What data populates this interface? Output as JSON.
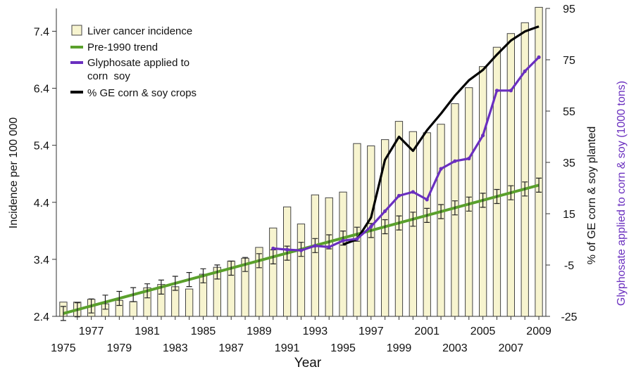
{
  "colors": {
    "bar_fill": "#f7f4cf",
    "bar_stroke": "#444444",
    "trend": "#5aa02c",
    "glyphosate": "#6a2fbf",
    "ge_crops": "#000000",
    "right_title_2": "#6a2fbf"
  },
  "chart_data": {
    "type": "bar",
    "xlabel": "Year",
    "ylabel": "Incidence per 100 000",
    "y2label_line1": "% of GE corn & soy planted",
    "y2label_line2": "Glyphosate applied to corn & soy (1000 tons)",
    "xlim": [
      1975,
      2009
    ],
    "ylim": [
      2.4,
      7.8
    ],
    "y2lim": [
      -25,
      95
    ],
    "x_ticks_top_row": [
      "1977",
      "1981",
      "1985",
      "1989",
      "1993",
      "1997",
      "2001",
      "2005",
      "2009"
    ],
    "x_ticks_bottom_row": [
      "1975",
      "1979",
      "1983",
      "1987",
      "1991",
      "1995",
      "1999",
      "2003",
      "2007"
    ],
    "y_ticks": [
      "2.4",
      "3.4",
      "4.4",
      "5.4",
      "6.4",
      "7.4"
    ],
    "y2_ticks": [
      "-25",
      "-5",
      "15",
      "35",
      "55",
      "75",
      "95"
    ],
    "grid": false,
    "legend_position": "top-left",
    "legend": [
      {
        "label": "Liver cancer incidence",
        "kind": "bar"
      },
      {
        "label": "Pre-1990 trend",
        "kind": "line",
        "color": "#5aa02c"
      },
      {
        "label_line1": "Glyphosate applied to",
        "label_line2": "corn  soy",
        "kind": "line",
        "color": "#6a2fbf"
      },
      {
        "label": "% GE corn & soy crops",
        "kind": "line",
        "color": "#000000"
      }
    ],
    "bars": {
      "name": "Liver cancer incidence",
      "x": [
        1975,
        1976,
        1977,
        1978,
        1979,
        1980,
        1981,
        1982,
        1983,
        1984,
        1985,
        1986,
        1987,
        1988,
        1989,
        1990,
        1991,
        1992,
        1993,
        1994,
        1995,
        1996,
        1997,
        1998,
        1999,
        2000,
        2001,
        2002,
        2003,
        2004,
        2005,
        2006,
        2007,
        2008,
        2009
      ],
      "values": [
        2.65,
        2.65,
        2.7,
        2.62,
        2.68,
        2.66,
        2.9,
        2.96,
        2.92,
        2.88,
        3.14,
        3.26,
        3.37,
        3.42,
        3.61,
        3.95,
        4.32,
        4.02,
        4.53,
        4.48,
        4.58,
        5.43,
        5.39,
        5.5,
        5.82,
        5.64,
        5.62,
        5.77,
        6.13,
        6.41,
        6.78,
        7.12,
        7.36,
        7.55,
        7.82
      ]
    },
    "pre1990_trend": {
      "name": "Pre-1990 trend",
      "x": [
        1975,
        2009
      ],
      "values": [
        2.45,
        4.7
      ]
    },
    "glyphosate": {
      "name": "Glyphosate applied to corn soy",
      "axis": "right",
      "x": [
        1990,
        1991,
        1992,
        1993,
        1994,
        1995,
        1996,
        1997,
        1998,
        1999,
        2000,
        2001,
        2002,
        2003,
        2004,
        2005,
        2006,
        2007,
        2008,
        2009
      ],
      "values": [
        1.5,
        1.0,
        0.7,
        2.5,
        2.0,
        4.5,
        5.2,
        10.0,
        16.0,
        22.0,
        23.5,
        20.5,
        32.5,
        35.5,
        36.5,
        45.5,
        63.0,
        63.0,
        70.5,
        76.0
      ]
    },
    "ge_crops": {
      "name": "% GE corn & soy crops",
      "axis": "right",
      "x": [
        1995,
        1996,
        1997,
        1998,
        1999,
        2000,
        2001,
        2002,
        2003,
        2004,
        2005,
        2006,
        2007,
        2008,
        2009
      ],
      "values": [
        3.0,
        5.0,
        13.5,
        36.0,
        45.0,
        39.5,
        47.5,
        54.0,
        61.0,
        67.0,
        71.0,
        77.0,
        82.5,
        86.0,
        88.0
      ]
    }
  }
}
